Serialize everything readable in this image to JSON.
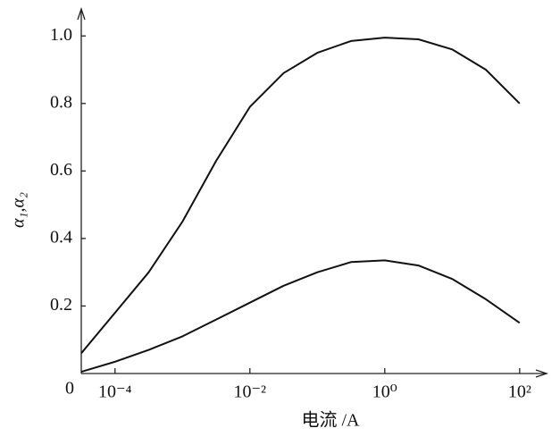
{
  "chart_data": {
    "type": "line",
    "log_x": true,
    "x": [
      3.16e-05,
      0.0001,
      0.000316,
      0.001,
      0.00316,
      0.01,
      0.0316,
      0.1,
      0.316,
      1,
      3.16,
      10,
      31.6,
      100
    ],
    "series": [
      {
        "color": "#111111",
        "values": [
          0.06,
          0.18,
          0.3,
          0.45,
          0.63,
          0.79,
          0.89,
          0.95,
          0.985,
          0.995,
          0.99,
          0.96,
          0.9,
          0.8
        ]
      },
      {
        "color": "#111111",
        "values": [
          0.005,
          0.035,
          0.07,
          0.11,
          0.16,
          0.21,
          0.26,
          0.3,
          0.33,
          0.335,
          0.32,
          0.28,
          0.22,
          0.15
        ]
      }
    ],
    "xlim": [
      3.16e-05,
      251
    ],
    "ylim": [
      0,
      1.08
    ],
    "xticks": [
      {
        "value": 0.0001,
        "label": "10⁻⁴"
      },
      {
        "value": 0.01,
        "label": "10⁻²"
      },
      {
        "value": 1,
        "label": "10⁰"
      },
      {
        "value": 100,
        "label": "10²"
      }
    ],
    "yticks": [
      0,
      0.2,
      0.4,
      0.6,
      0.8,
      {
        "value": 1,
        "label": "1.0"
      }
    ],
    "xlabel": "电流 /A",
    "ylabel": "α₁,α₂",
    "grid": false
  }
}
